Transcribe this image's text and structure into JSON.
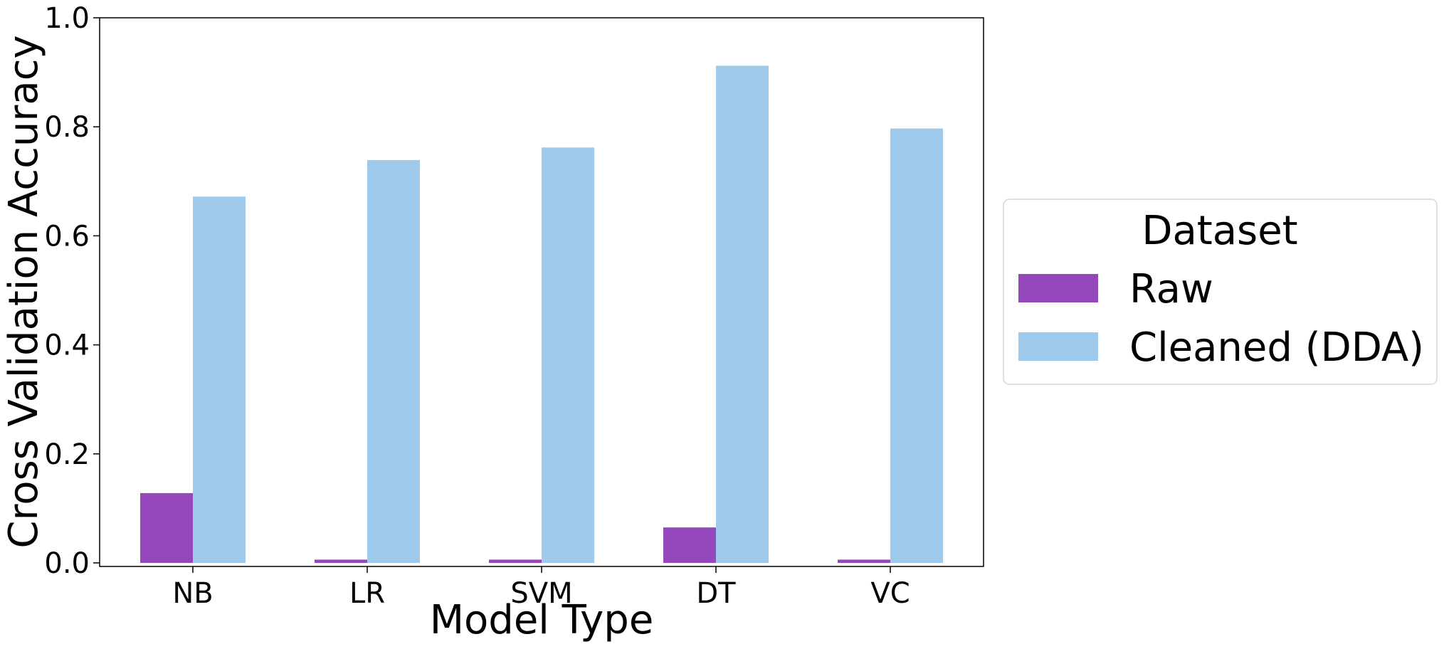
{
  "chart_data": {
    "type": "bar",
    "xlabel": "Model Type",
    "ylabel": "Cross Validation Accuracy",
    "ylim": [
      0.0,
      1.0
    ],
    "yticks": [
      "0.0",
      "0.2",
      "0.4",
      "0.6",
      "0.8",
      "1.0"
    ],
    "categories": [
      "NB",
      "LR",
      "SVM",
      "DT",
      "VC"
    ],
    "series": [
      {
        "name": "Raw",
        "color": "#9448bc",
        "values": [
          0.128,
          0.006,
          0.006,
          0.065,
          0.006
        ]
      },
      {
        "name": "Cleaned (DDA)",
        "color": "#9fcaeb",
        "values": [
          0.672,
          0.739,
          0.762,
          0.912,
          0.797
        ]
      }
    ],
    "grid": false,
    "legend": {
      "title": "Dataset",
      "placement": "right-outside"
    }
  }
}
